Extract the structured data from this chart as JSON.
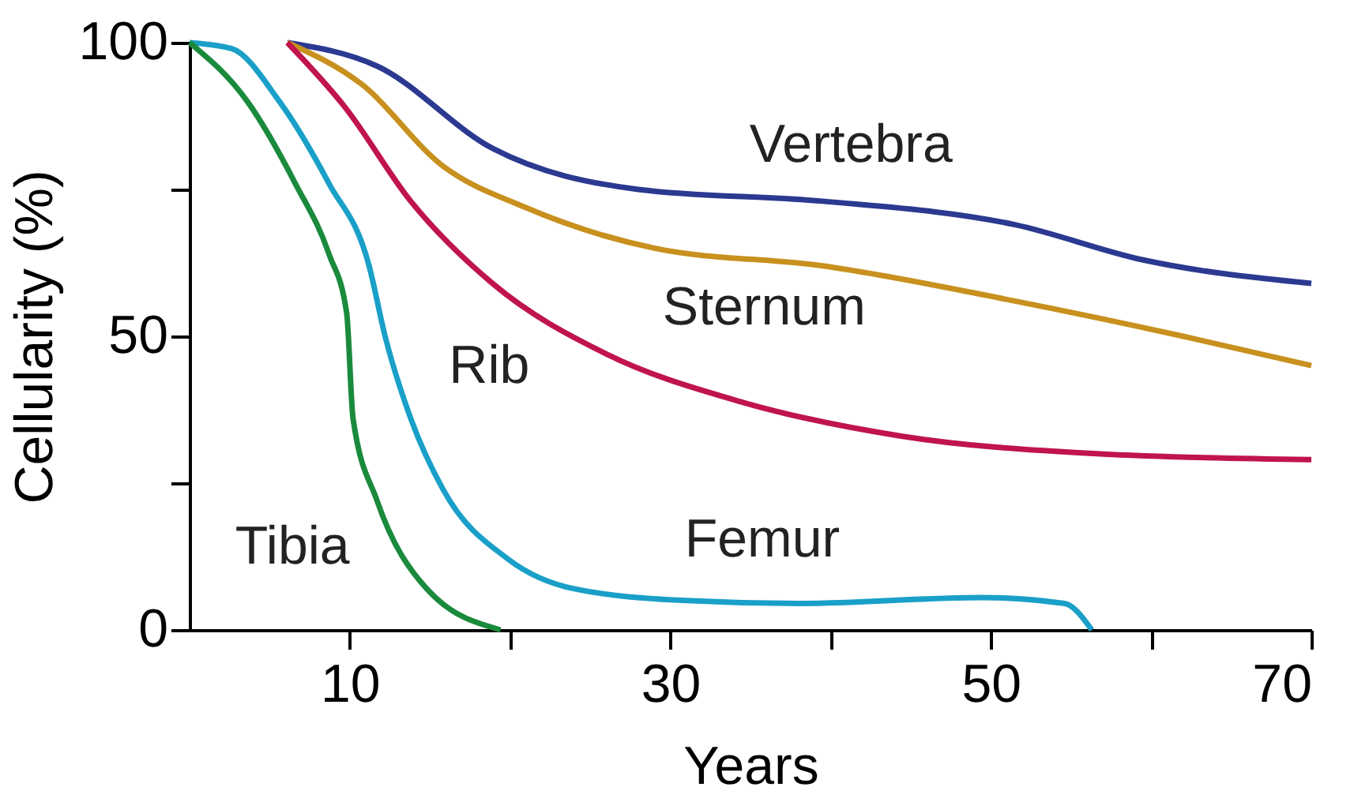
{
  "chart_data": {
    "type": "line",
    "xlabel": "Years",
    "ylabel": "Cellularity (%)",
    "xlim": [
      0,
      70
    ],
    "ylim": [
      0,
      100
    ],
    "xticks": [
      {
        "value": 10,
        "label": "10"
      },
      {
        "value": 20,
        "label": null
      },
      {
        "value": 30,
        "label": "30"
      },
      {
        "value": 40,
        "label": null
      },
      {
        "value": 50,
        "label": "50"
      },
      {
        "value": 60,
        "label": null
      },
      {
        "value": 70,
        "label": "70"
      }
    ],
    "yticks": [
      0,
      {
        "value": 25,
        "label": null
      },
      50,
      {
        "value": 75,
        "label": null
      },
      100
    ],
    "grid": false,
    "marker": "none",
    "line_style": "solid",
    "series": [
      {
        "color": "#2b3990",
        "x": [
          6.1,
          11.7,
          18.9,
          28,
          39.5,
          51.5,
          59.5,
          70
        ],
        "values": [
          100,
          96,
          82,
          75,
          73,
          69,
          63,
          59
        ]
      },
      {
        "color": "#c8901e",
        "x": [
          6.1,
          10.7,
          15.8,
          20.9,
          29,
          39.5,
          51.5,
          62,
          70
        ],
        "values": [
          100,
          93,
          79,
          72,
          65,
          62,
          56,
          50,
          45
        ]
      },
      {
        "color": "#c0144c",
        "x": [
          6.1,
          9.7,
          13.8,
          18.9,
          26,
          34.2,
          44.4,
          56.6,
          70
        ],
        "values": [
          100,
          89,
          73,
          59,
          47,
          39,
          33,
          30,
          29
        ]
      },
      {
        "color": "#1aa0c8",
        "x": [
          0,
          2.6,
          5.6,
          8.7,
          11.2,
          12.2,
          13.8,
          15.8,
          19.9,
          24,
          31,
          38,
          49.5,
          54.6,
          56.3
        ],
        "values": [
          100,
          99,
          90,
          76,
          62,
          50,
          36,
          24,
          12,
          7,
          5,
          4.5,
          5.5,
          4.5,
          0
        ]
      },
      {
        "color": "#1a8a3c",
        "x": [
          0,
          3.6,
          6.6,
          8.7,
          9.8,
          10.2,
          11.7,
          14.8,
          19.4
        ],
        "values": [
          100,
          90,
          76,
          64,
          54,
          36,
          22,
          7,
          0
        ]
      }
    ],
    "annotations": [
      {
        "text": "Vertebra",
        "x": 39.5,
        "y": 73
      },
      {
        "text": "Sternum",
        "x": 39.5,
        "y": 62
      },
      {
        "text": "Rib",
        "x": 18.9,
        "y": 59
      },
      {
        "text": "Femur",
        "x": 38,
        "y": 4.5
      },
      {
        "text": "Tibia",
        "x": 14.8,
        "y": 7
      }
    ]
  }
}
